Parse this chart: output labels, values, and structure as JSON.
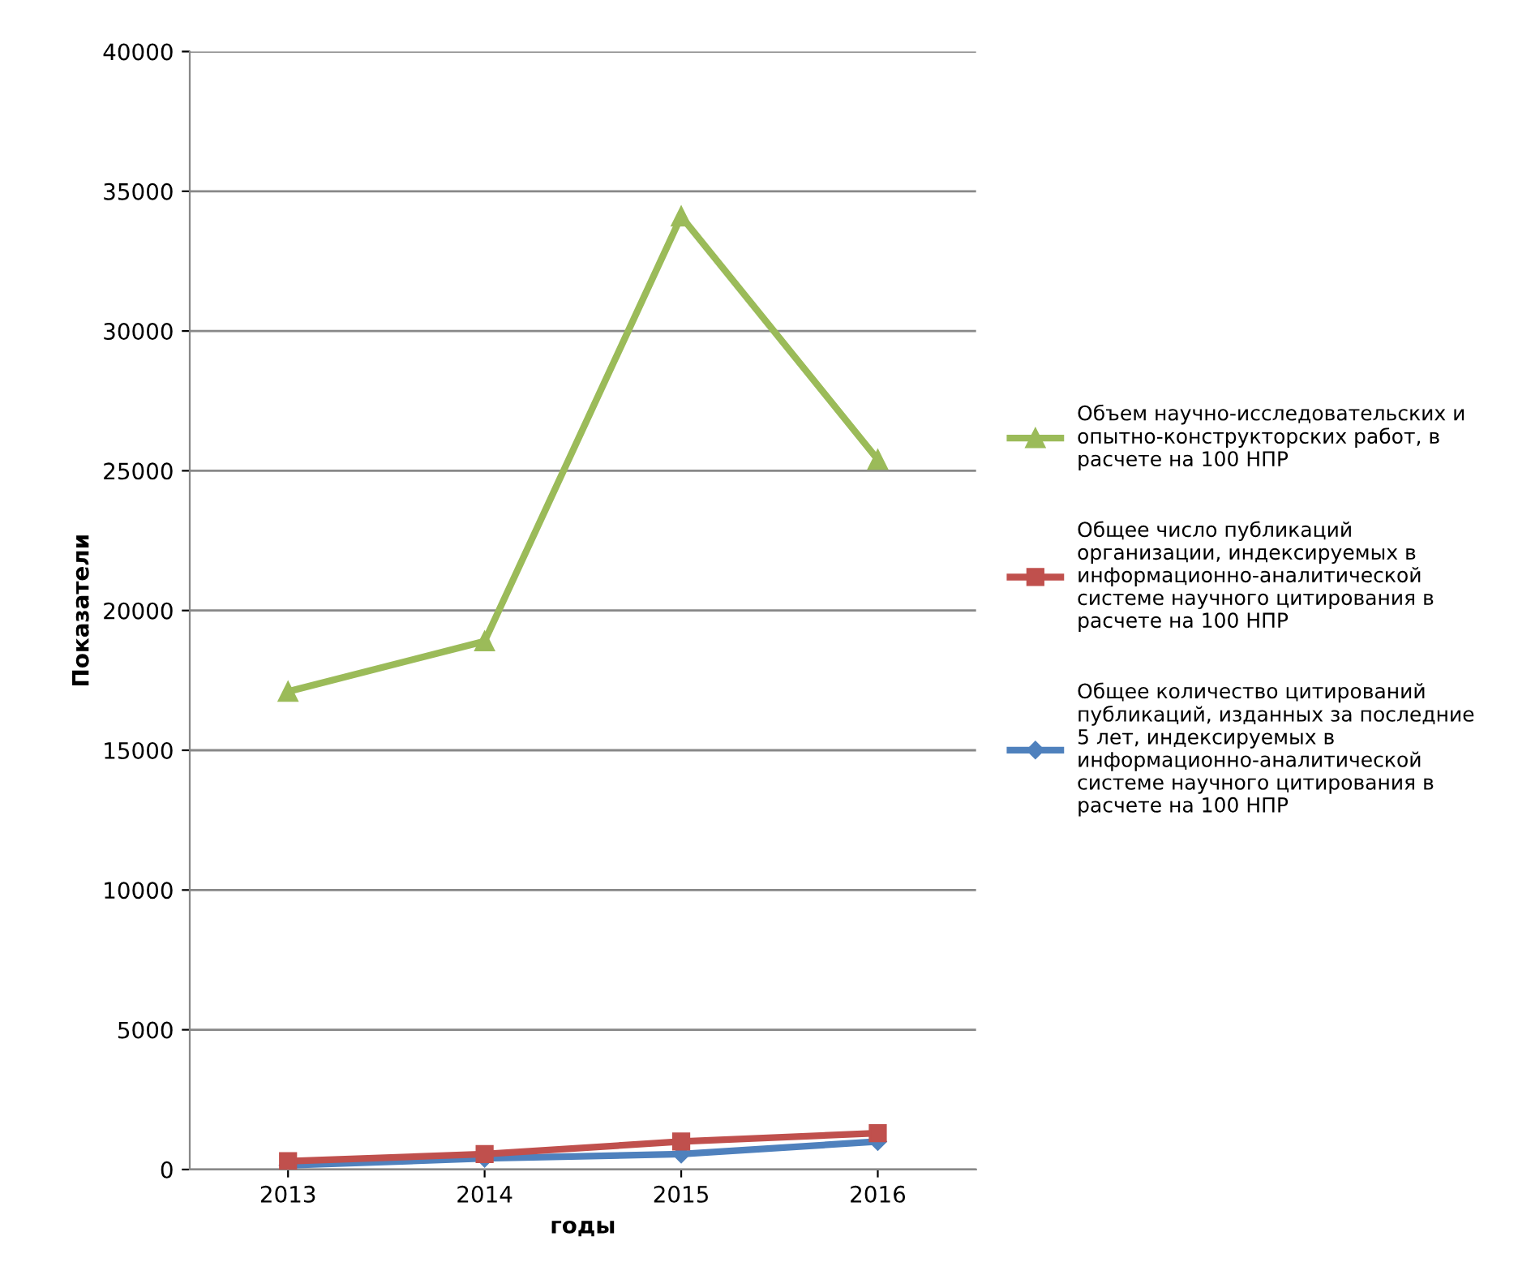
{
  "chart_data": {
    "type": "line",
    "xlabel": "годы",
    "ylabel": "Показатели",
    "categories": [
      "2013",
      "2014",
      "2015",
      "2016"
    ],
    "series": [
      {
        "name": "Объем научно-исследовательских и опытно-конструкторских работ, в расчете на 100 НПР",
        "color": "#9bbb59",
        "marker": "triangle",
        "values": [
          17100,
          18900,
          34100,
          25400
        ]
      },
      {
        "name": "Общее число публикаций организации, индексируемых в информационно-аналитической системе научного цитирования в расчете на 100 НПР",
        "color": "#c0504d",
        "marker": "square",
        "values": [
          300,
          550,
          1000,
          1300
        ]
      },
      {
        "name": "Общее количество цитирований публикаций, изданных за последние 5 лет, индексируемых в информационно-аналитической системе научного цитирования в расчете на 100 НПР",
        "color": "#4f81bd",
        "marker": "diamond",
        "values": [
          150,
          400,
          550,
          1000
        ]
      }
    ],
    "ylim": [
      0,
      40000
    ],
    "yticks": [
      0,
      5000,
      10000,
      15000,
      20000,
      25000,
      30000,
      35000,
      40000
    ],
    "grid": "y",
    "legend": "right"
  }
}
